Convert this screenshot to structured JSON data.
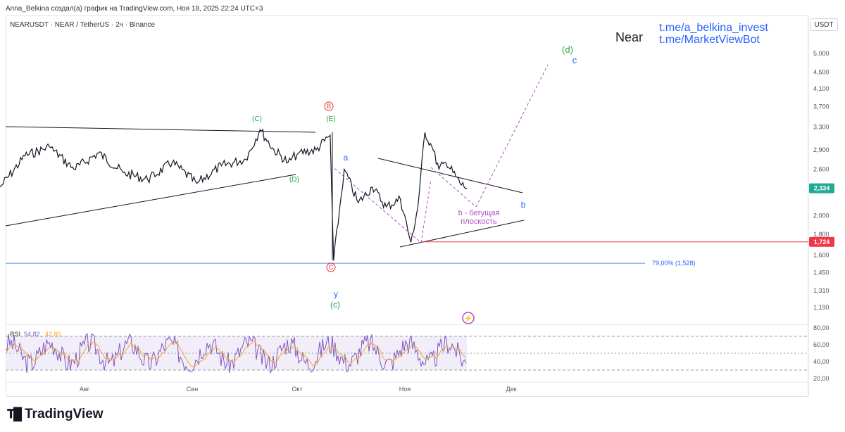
{
  "header": {
    "author_line": "Anna_Belkina создал(а) график на TradingView.com, Ноя 18, 2025 22:24 UTC+3",
    "symbol_line": "NEARUSDT · NEAR / TetherUS · 2ч · Binance",
    "currency_button": "USDT"
  },
  "watermark": {
    "name": "Near",
    "link1": "t.me/a_belkina_invest",
    "link2": "t.me/MarketViewBot"
  },
  "brand": {
    "logo_text": "TradingView"
  },
  "chart_data": [
    {
      "type": "line",
      "title": "NEARUSDT · NEAR / TetherUS · 2ч · Binance",
      "y_scale": "log",
      "y_ticks": [
        "5,000",
        "4,500",
        "4,100",
        "3,700",
        "3,300",
        "2,900",
        "2,600",
        "2,000",
        "1,800",
        "1,600",
        "1,450",
        "1,310",
        "1,190"
      ],
      "y_tick_values": [
        5.0,
        4.5,
        4.1,
        3.7,
        3.3,
        2.9,
        2.6,
        2.0,
        1.8,
        1.6,
        1.45,
        1.31,
        1.19
      ],
      "x_ticks": [
        "Авг",
        "Сен",
        "Окт",
        "Ноя",
        "Дек"
      ],
      "series": [
        {
          "name": "NEARUSDT",
          "x": [
            "Jul 08",
            "Jul 15",
            "Jul 22",
            "Jul 29",
            "Aug 05",
            "Aug 12",
            "Aug 19",
            "Aug 26",
            "Sep 02",
            "Sep 09",
            "Sep 16",
            "Sep 20",
            "Sep 24",
            "Sep 28",
            "Oct 01",
            "Oct 06",
            "Oct 10",
            "Oct 11",
            "Oct 14",
            "Oct 18",
            "Oct 22",
            "Oct 26",
            "Oct 30",
            "Nov 02",
            "Nov 04",
            "Nov 06",
            "Nov 08",
            "Nov 10",
            "Nov 12",
            "Nov 14",
            "Nov 16",
            "Nov 18"
          ],
          "y": [
            2.35,
            2.8,
            2.95,
            2.6,
            2.85,
            2.55,
            2.45,
            2.7,
            2.4,
            2.65,
            2.75,
            3.25,
            2.9,
            2.7,
            2.85,
            2.9,
            3.15,
            1.55,
            2.6,
            2.15,
            2.35,
            2.1,
            2.2,
            1.72,
            2.1,
            3.2,
            2.95,
            2.6,
            2.7,
            2.55,
            2.4,
            2.334
          ]
        }
      ],
      "price_labels": [
        {
          "label": "2,334",
          "value": 2.334,
          "color": "#22ab94"
        },
        {
          "label": "1,724",
          "value": 1.724,
          "color": "#f23645"
        }
      ],
      "fib_level": {
        "label": "79,00% (1,528)",
        "value": 1.528
      },
      "annotations": [
        "(C)",
        "B",
        "(E)",
        "(D)",
        "C",
        "a",
        "y",
        "(c)",
        "b",
        "b - бегущая",
        "плоскость",
        "(d)",
        "c"
      ]
    },
    {
      "type": "line",
      "title": "RSI 54,82 42,85",
      "rsi_name": "RSI",
      "rsi_value": "54,82",
      "rsi_ma_value": "42,85",
      "y_ticks": [
        "80,00",
        "60,00",
        "40,00",
        "20,00"
      ],
      "y_tick_values": [
        80,
        60,
        40,
        20
      ],
      "bands": [
        70,
        50,
        30
      ],
      "series": [
        {
          "name": "RSI",
          "color": "#7e57c2",
          "last": 54.82
        },
        {
          "name": "RSI-based MA",
          "color": "#f5a623",
          "last": 42.85
        }
      ]
    }
  ]
}
